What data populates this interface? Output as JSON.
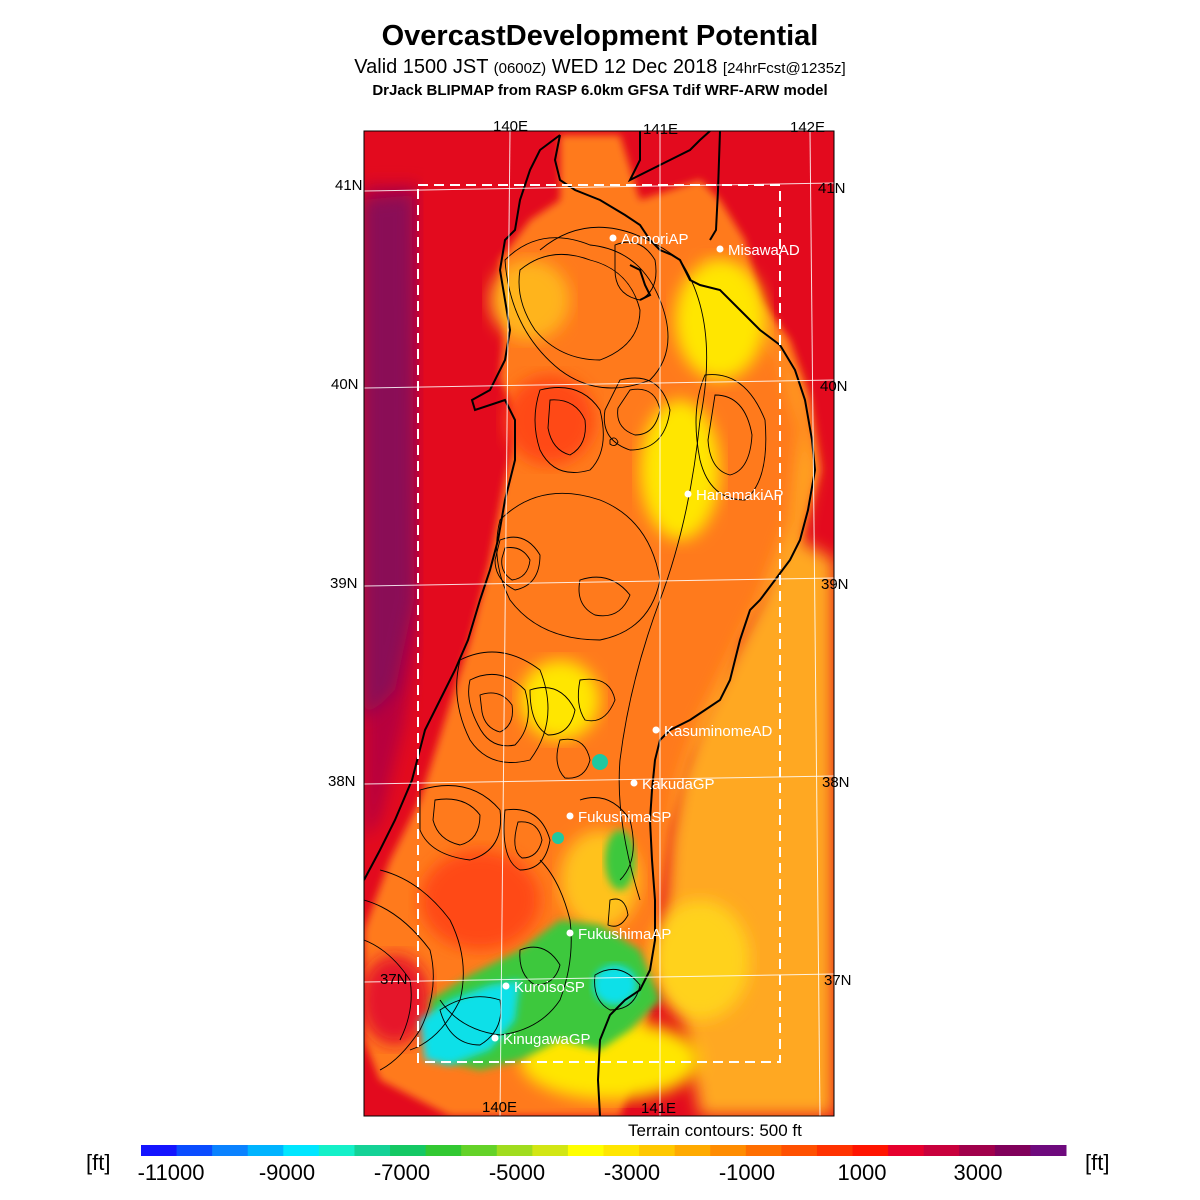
{
  "header": {
    "title": "OvercastDevelopment Potential",
    "valid_prefix": "Valid 1500 JST",
    "valid_utc": "(0600Z)",
    "valid_date": "WED 12 Dec 2018",
    "forecast": "[24hrFcst@1235z]",
    "model": "DrJack BLIPMAP from RASP 6.0km GFSA Tdif WRF-ARW model"
  },
  "map": {
    "lon_labels_top": [
      "140E",
      "141E",
      "142E"
    ],
    "lon_labels_bottom": [
      "140E",
      "141E"
    ],
    "lat_labels_left": [
      "41N",
      "40N",
      "39N",
      "38N",
      "37N"
    ],
    "lat_labels_right": [
      "41N",
      "40N",
      "39N",
      "38N",
      "37N"
    ],
    "stations": [
      {
        "name": "AomoriAP"
      },
      {
        "name": "MisawaAD"
      },
      {
        "name": "HanamakiAP"
      },
      {
        "name": "KasuminomeAD"
      },
      {
        "name": "KakudaGP"
      },
      {
        "name": "FukushimaSP"
      },
      {
        "name": "FukushimaAP"
      },
      {
        "name": "KuroisoSP"
      },
      {
        "name": "KinugawaGP"
      }
    ],
    "colors": {
      "sea": "#e30a1e",
      "sea_deep": "#b8003c",
      "sea_purple": "#8a0c57",
      "orange": "#ff7a1a",
      "dark_orange": "#ff5a12",
      "yellow": "#ffe600",
      "yellow_orange": "#ffc21a",
      "green": "#3cc83c",
      "cyan": "#10e0e8",
      "teal": "#20c8a0"
    }
  },
  "terrain_note": "Terrain contours: 500 ft",
  "colorbar": {
    "unit": "[ft]",
    "labels": [
      "-11000",
      "-9000",
      "-7000",
      "-5000",
      "-3000",
      "-1000",
      "1000",
      "3000"
    ],
    "colors": [
      "#1414ff",
      "#0a4cff",
      "#0a82ff",
      "#00b4ff",
      "#00e6ff",
      "#14f0c8",
      "#14d296",
      "#14c864",
      "#32c832",
      "#64d228",
      "#a0dc1e",
      "#d2e614",
      "#ffff00",
      "#ffe600",
      "#ffc800",
      "#ffaa00",
      "#ff8c00",
      "#ff6e00",
      "#ff5000",
      "#ff3200",
      "#ff1400",
      "#e6002d",
      "#c8003c",
      "#a0004b",
      "#80005a",
      "#6e0a7d"
    ]
  }
}
